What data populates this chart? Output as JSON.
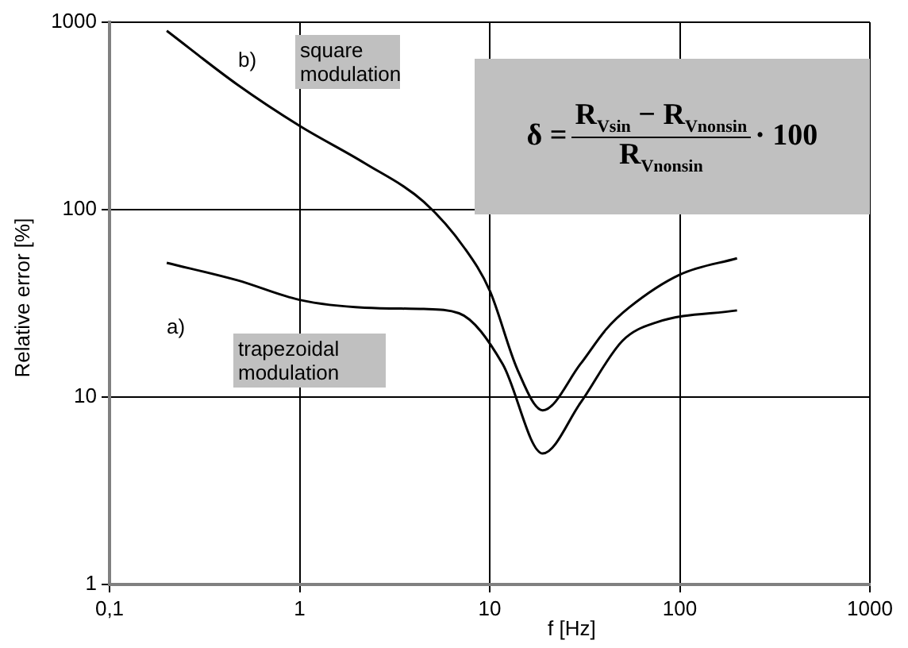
{
  "chart_data": {
    "type": "line",
    "xlabel": "f [Hz]",
    "ylabel": "Relative error [%]",
    "log": "xy",
    "xlim": [
      0.1,
      1000
    ],
    "ylim": [
      1,
      1000
    ],
    "xticks": [
      {
        "value": 0.1,
        "label": "0,1"
      },
      1,
      10,
      100,
      1000
    ],
    "yticks": [
      1,
      10,
      100,
      1000
    ],
    "grid": true,
    "legend": false,
    "marker": "none",
    "line_style": "solid",
    "series": [
      {
        "color": "#000000",
        "x": [
          0.2,
          0.47,
          1,
          2.2,
          4.5,
          7.4,
          10,
          14,
          19,
          30,
          41,
          54,
          100,
          200
        ],
        "values": [
          900,
          465,
          280,
          177,
          110,
          62,
          37,
          14,
          8.5,
          15,
          23,
          30,
          45,
          55
        ]
      },
      {
        "color": "#000000",
        "x": [
          0.2,
          0.47,
          1,
          2.2,
          4.5,
          6.9,
          11.7,
          19,
          30,
          50,
          75,
          200
        ],
        "values": [
          52,
          42,
          33,
          30,
          29.5,
          28,
          15,
          5,
          9.3,
          20,
          25,
          29
        ]
      }
    ],
    "annotations": [
      "b)",
      "square modulation",
      "a)",
      "trapezoidal modulation",
      "δ =",
      "R$_{Vsin}$ − R$_{Vnonsin}$",
      "R$_{Vnonsin}$",
      "· 100"
    ]
  }
}
